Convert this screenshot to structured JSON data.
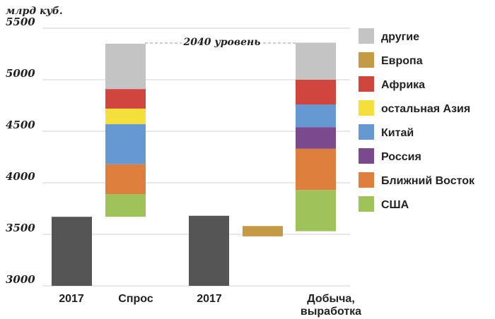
{
  "chart_data": {
    "type": "bar",
    "unit_label": "млрд куб.",
    "ylim": [
      3000,
      5500
    ],
    "yticks": [
      3000,
      3500,
      4000,
      4500,
      5000,
      5500
    ],
    "grid": true,
    "legend_position": "right",
    "categories": [
      "2017",
      "Спрос",
      "2017",
      "Добыча, выработка"
    ],
    "annotation": "2040 уровень",
    "series": [
      {
        "name": "другие",
        "color": "#c4c4c4"
      },
      {
        "name": "Европа",
        "color": "#c49a45"
      },
      {
        "name": "Африка",
        "color": "#d1453f"
      },
      {
        "name": "остальная Азия",
        "color": "#f5df3a"
      },
      {
        "name": "Китай",
        "color": "#6699d1"
      },
      {
        "name": "Россия",
        "color": "#7b4a8e"
      },
      {
        "name": "Ближний Восток",
        "color": "#df7f3d"
      },
      {
        "name": "США",
        "color": "#a0c25a"
      }
    ],
    "bars": [
      {
        "category_index": 0,
        "base": 3000,
        "segments": [
          {
            "value": 670,
            "color": "#555555"
          }
        ]
      },
      {
        "category_index": 1,
        "base": 3670,
        "segments": [
          {
            "series": "США",
            "value": 220
          },
          {
            "series": "Ближний Восток",
            "value": 290
          },
          {
            "series": "Китай",
            "value": 390
          },
          {
            "series": "остальная Азия",
            "value": 150
          },
          {
            "series": "Африка",
            "value": 190
          },
          {
            "series": "другие",
            "value": 440
          }
        ]
      },
      {
        "category_index": 2,
        "base": 3000,
        "segments": [
          {
            "value": 680,
            "color": "#555555"
          }
        ]
      },
      {
        "category_index": 2.5,
        "base": 3530,
        "segments": [
          {
            "series": "остальная Азия",
            "value": 50
          },
          {
            "series": "Европа",
            "value": -100
          }
        ]
      },
      {
        "category_index": 3,
        "base": 3530,
        "segments": [
          {
            "series": "США",
            "value": 400
          },
          {
            "series": "Ближний Восток",
            "value": 400
          },
          {
            "series": "Россия",
            "value": 210
          },
          {
            "series": "Китай",
            "value": 220
          },
          {
            "series": "Африка",
            "value": 240
          },
          {
            "series": "другие",
            "value": 360
          }
        ]
      }
    ]
  }
}
